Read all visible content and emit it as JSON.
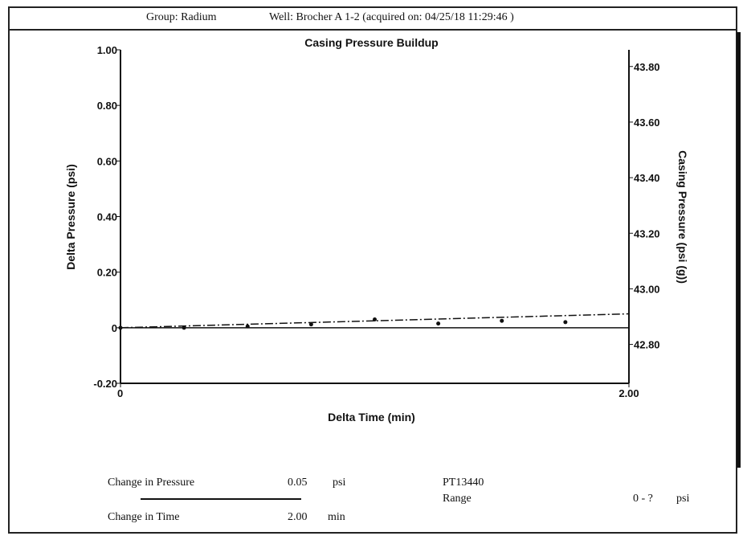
{
  "header": {
    "group": "Group: Radium",
    "well": "Well: Brocher A 1-2 (acquired on: 04/25/18 11:29:46 )"
  },
  "chart_data": {
    "type": "line",
    "title": "Casing Pressure Buildup",
    "xlabel": "Delta Time (min)",
    "ylabel": "Delta Pressure (psi)",
    "y2label": "Casing Pressure (psi (g))",
    "xlim": [
      0,
      2.0
    ],
    "ylim": [
      -0.2,
      1.0
    ],
    "y2lim": [
      42.66,
      43.86
    ],
    "x_ticks": [
      "0",
      "2.00"
    ],
    "y_ticks": [
      {
        "value": 1.0,
        "label": "1.00"
      },
      {
        "value": 0.8,
        "label": "0.80"
      },
      {
        "value": 0.6,
        "label": "0.60"
      },
      {
        "value": 0.4,
        "label": "0.40"
      },
      {
        "value": 0.2,
        "label": "0.20"
      },
      {
        "value": 0.0,
        "label": "0"
      },
      {
        "value": -0.2,
        "label": "-0.20"
      }
    ],
    "y2_ticks": [
      {
        "value": 43.8,
        "label": "43.80"
      },
      {
        "value": 43.6,
        "label": "43.60"
      },
      {
        "value": 43.4,
        "label": "43.40"
      },
      {
        "value": 43.2,
        "label": "43.20"
      },
      {
        "value": 43.0,
        "label": "43.00"
      },
      {
        "value": 42.8,
        "label": "42.80"
      }
    ],
    "series": [
      {
        "kind": "points",
        "x": [
          0.0,
          0.25,
          0.5,
          0.75,
          1.0,
          1.25,
          1.5,
          1.75
        ],
        "y": [
          0.0,
          0.0,
          0.005,
          0.012,
          0.03,
          0.015,
          0.025,
          0.02
        ]
      },
      {
        "kind": "trend",
        "x": [
          0.0,
          2.0
        ],
        "y": [
          0.0,
          0.05
        ]
      }
    ],
    "grid": false,
    "legend": "none"
  },
  "summary": {
    "change_in_pressure_label": "Change in Pressure",
    "change_in_pressure_value": "0.05",
    "change_in_pressure_unit": "psi",
    "change_in_time_label": "Change in Time",
    "change_in_time_value": "2.00",
    "change_in_time_unit": "min",
    "gauge_id": "PT13440",
    "range_label": "Range",
    "range_value": "0 - ?",
    "range_unit": "psi"
  }
}
